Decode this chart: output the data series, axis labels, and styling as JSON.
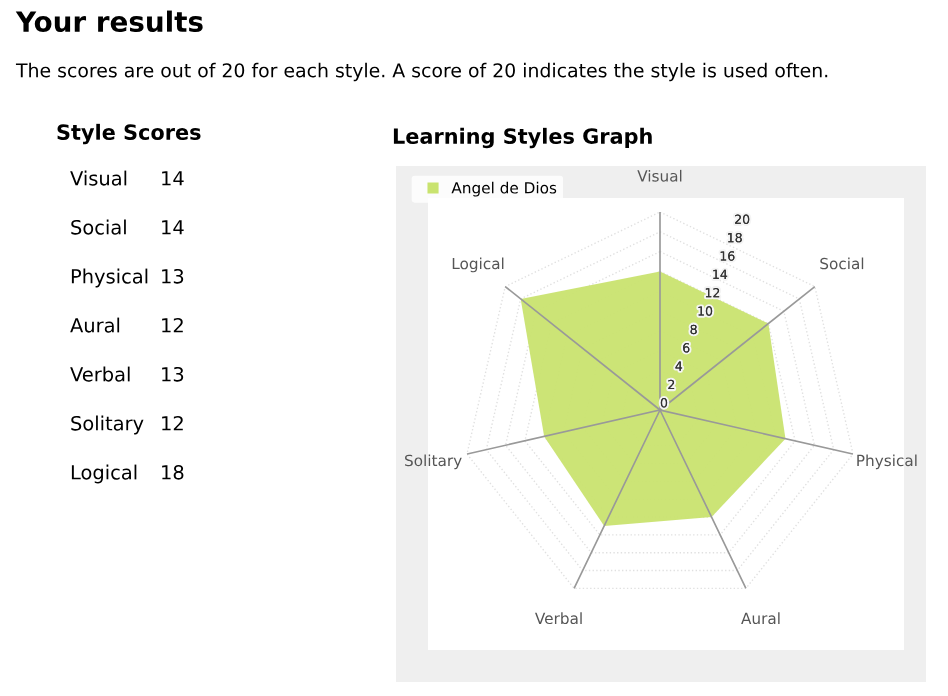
{
  "chart_data": [
    {
      "type": "other",
      "title": "Style Scores",
      "annotations": [
        "Your results",
        "The scores are out of 20 for each style. A score of 20 indicates the style is used often."
      ],
      "categories": [
        "Visual",
        "Social",
        "Physical",
        "Aural",
        "Verbal",
        "Solitary",
        "Logical"
      ],
      "values": [
        14,
        14,
        13,
        12,
        13,
        12,
        18
      ],
      "data_labels": true
    },
    {
      "type": "radar",
      "title": "Learning Styles Graph",
      "categories": [
        "Visual",
        "Social",
        "Physical",
        "Aural",
        "Verbal",
        "Solitary",
        "Logical"
      ],
      "series": [
        {
          "name": "Angel de Dios",
          "color": "#c9e36f",
          "values": [
            14,
            14,
            13,
            12,
            13,
            12,
            18
          ]
        }
      ],
      "ylim": [
        0,
        20
      ],
      "yticks": [
        0,
        2,
        4,
        6,
        8,
        10,
        12,
        14,
        16,
        18,
        20
      ],
      "grid": true,
      "legend": "top left"
    }
  ]
}
